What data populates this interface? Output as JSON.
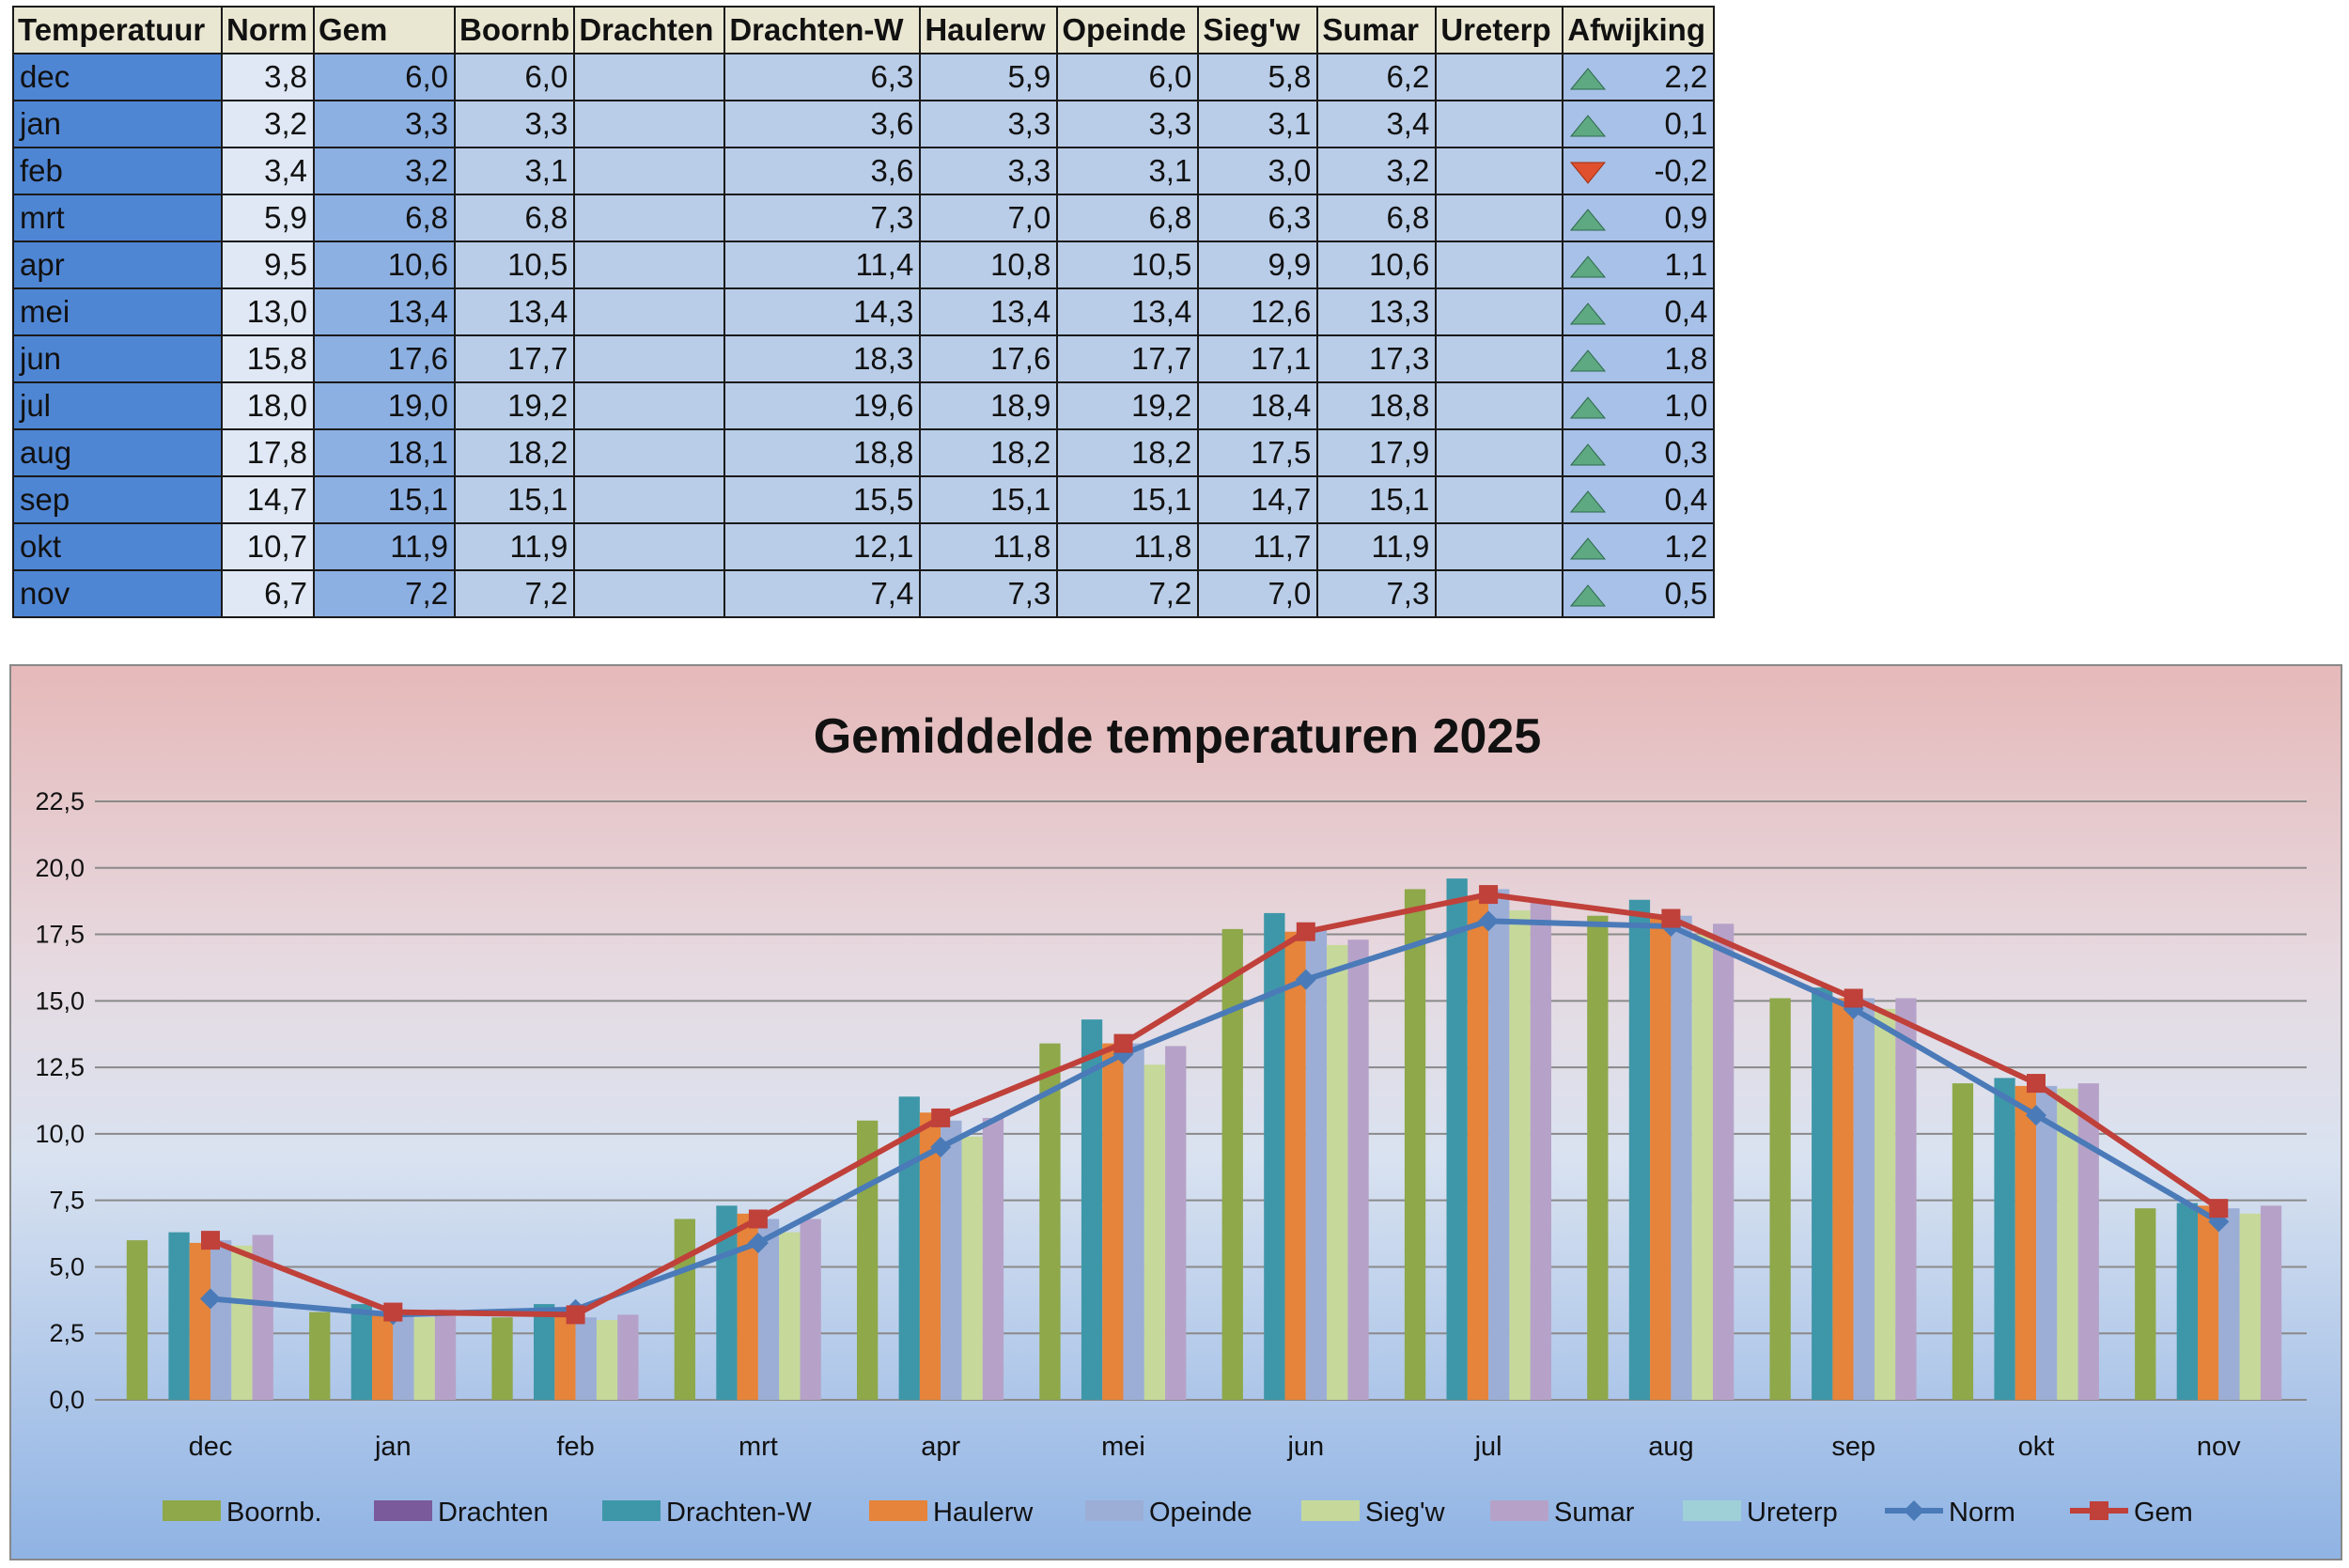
{
  "table": {
    "headers": [
      "Temperatuur",
      "Norm",
      "Gem",
      "Boornb",
      "Drachten",
      "Drachten-W",
      "Haulerw",
      "Opeinde",
      "Sieg'w",
      "Sumar",
      "Ureterp",
      "Afwijking"
    ],
    "rows": [
      {
        "month": "dec",
        "norm": "3,8",
        "gem": "6,0",
        "boornb": "6,0",
        "drachten": "",
        "drachten_w": "6,3",
        "haulerw": "5,9",
        "opeinde": "6,0",
        "siegw": "5,8",
        "sumar": "6,2",
        "ureterp": "",
        "afwijking": "2,2",
        "trend": "up"
      },
      {
        "month": "jan",
        "norm": "3,2",
        "gem": "3,3",
        "boornb": "3,3",
        "drachten": "",
        "drachten_w": "3,6",
        "haulerw": "3,3",
        "opeinde": "3,3",
        "siegw": "3,1",
        "sumar": "3,4",
        "ureterp": "",
        "afwijking": "0,1",
        "trend": "up"
      },
      {
        "month": "feb",
        "norm": "3,4",
        "gem": "3,2",
        "boornb": "3,1",
        "drachten": "",
        "drachten_w": "3,6",
        "haulerw": "3,3",
        "opeinde": "3,1",
        "siegw": "3,0",
        "sumar": "3,2",
        "ureterp": "",
        "afwijking": "-0,2",
        "trend": "down"
      },
      {
        "month": "mrt",
        "norm": "5,9",
        "gem": "6,8",
        "boornb": "6,8",
        "drachten": "",
        "drachten_w": "7,3",
        "haulerw": "7,0",
        "opeinde": "6,8",
        "siegw": "6,3",
        "sumar": "6,8",
        "ureterp": "",
        "afwijking": "0,9",
        "trend": "up"
      },
      {
        "month": "apr",
        "norm": "9,5",
        "gem": "10,6",
        "boornb": "10,5",
        "drachten": "",
        "drachten_w": "11,4",
        "haulerw": "10,8",
        "opeinde": "10,5",
        "siegw": "9,9",
        "sumar": "10,6",
        "ureterp": "",
        "afwijking": "1,1",
        "trend": "up"
      },
      {
        "month": "mei",
        "norm": "13,0",
        "gem": "13,4",
        "boornb": "13,4",
        "drachten": "",
        "drachten_w": "14,3",
        "haulerw": "13,4",
        "opeinde": "13,4",
        "siegw": "12,6",
        "sumar": "13,3",
        "ureterp": "",
        "afwijking": "0,4",
        "trend": "up"
      },
      {
        "month": "jun",
        "norm": "15,8",
        "gem": "17,6",
        "boornb": "17,7",
        "drachten": "",
        "drachten_w": "18,3",
        "haulerw": "17,6",
        "opeinde": "17,7",
        "siegw": "17,1",
        "sumar": "17,3",
        "ureterp": "",
        "afwijking": "1,8",
        "trend": "up"
      },
      {
        "month": "jul",
        "norm": "18,0",
        "gem": "19,0",
        "boornb": "19,2",
        "drachten": "",
        "drachten_w": "19,6",
        "haulerw": "18,9",
        "opeinde": "19,2",
        "siegw": "18,4",
        "sumar": "18,8",
        "ureterp": "",
        "afwijking": "1,0",
        "trend": "up"
      },
      {
        "month": "aug",
        "norm": "17,8",
        "gem": "18,1",
        "boornb": "18,2",
        "drachten": "",
        "drachten_w": "18,8",
        "haulerw": "18,2",
        "opeinde": "18,2",
        "siegw": "17,5",
        "sumar": "17,9",
        "ureterp": "",
        "afwijking": "0,3",
        "trend": "up"
      },
      {
        "month": "sep",
        "norm": "14,7",
        "gem": "15,1",
        "boornb": "15,1",
        "drachten": "",
        "drachten_w": "15,5",
        "haulerw": "15,1",
        "opeinde": "15,1",
        "siegw": "14,7",
        "sumar": "15,1",
        "ureterp": "",
        "afwijking": "0,4",
        "trend": "up"
      },
      {
        "month": "okt",
        "norm": "10,7",
        "gem": "11,9",
        "boornb": "11,9",
        "drachten": "",
        "drachten_w": "12,1",
        "haulerw": "11,8",
        "opeinde": "11,8",
        "siegw": "11,7",
        "sumar": "11,9",
        "ureterp": "",
        "afwijking": "1,2",
        "trend": "up"
      },
      {
        "month": "nov",
        "norm": "6,7",
        "gem": "7,2",
        "boornb": "7,2",
        "drachten": "",
        "drachten_w": "7,4",
        "haulerw": "7,3",
        "opeinde": "7,2",
        "siegw": "7,0",
        "sumar": "7,3",
        "ureterp": "",
        "afwijking": "0,5",
        "trend": "up"
      }
    ],
    "trend_colors": {
      "up": "#5ea882",
      "down": "#e0502e"
    }
  },
  "chart_data": {
    "type": "bar+line",
    "title": "Gemiddelde temperaturen 2025",
    "categories": [
      "dec",
      "jan",
      "feb",
      "mrt",
      "apr",
      "mei",
      "jun",
      "jul",
      "aug",
      "sep",
      "okt",
      "nov"
    ],
    "ylim": [
      0,
      22.5
    ],
    "yticks": [
      "0,0",
      "2,5",
      "5,0",
      "7,5",
      "10,0",
      "12,5",
      "15,0",
      "17,5",
      "20,0",
      "22,5"
    ],
    "grid": true,
    "legend_position": "bottom",
    "bar_series": [
      {
        "name": "Boornb.",
        "color": "#8ea84a",
        "values": [
          6.0,
          3.3,
          3.1,
          6.8,
          10.5,
          13.4,
          17.7,
          19.2,
          18.2,
          15.1,
          11.9,
          7.2
        ]
      },
      {
        "name": "Drachten",
        "color": "#7a5a9a",
        "values": [
          null,
          null,
          null,
          null,
          null,
          null,
          null,
          null,
          null,
          null,
          null,
          null
        ]
      },
      {
        "name": "Drachten-W",
        "color": "#3e97a8",
        "values": [
          6.3,
          3.6,
          3.6,
          7.3,
          11.4,
          14.3,
          18.3,
          19.6,
          18.8,
          15.5,
          12.1,
          7.4
        ]
      },
      {
        "name": "Haulerw",
        "color": "#e5843a",
        "values": [
          5.9,
          3.3,
          3.3,
          7.0,
          10.8,
          13.4,
          17.6,
          18.9,
          18.2,
          15.1,
          11.8,
          7.3
        ]
      },
      {
        "name": "Opeinde",
        "color": "#9caed6",
        "values": [
          6.0,
          3.3,
          3.1,
          6.8,
          10.5,
          13.4,
          17.7,
          19.2,
          18.2,
          15.1,
          11.8,
          7.2
        ]
      },
      {
        "name": "Sieg'w",
        "color": "#c6d99a",
        "values": [
          5.8,
          3.1,
          3.0,
          6.3,
          9.9,
          12.6,
          17.1,
          18.4,
          17.5,
          14.7,
          11.7,
          7.0
        ]
      },
      {
        "name": "Sumar",
        "color": "#b6a2c8",
        "values": [
          6.2,
          3.4,
          3.2,
          6.8,
          10.6,
          13.3,
          17.3,
          18.8,
          17.9,
          15.1,
          11.9,
          7.3
        ]
      },
      {
        "name": "Ureterp",
        "color": "#9fd0d8",
        "values": [
          null,
          null,
          null,
          null,
          null,
          null,
          null,
          null,
          null,
          null,
          null,
          null
        ]
      }
    ],
    "line_series": [
      {
        "name": "Norm",
        "color": "#4a7ab8",
        "marker": "diamond",
        "values": [
          3.8,
          3.2,
          3.4,
          5.9,
          9.5,
          13.0,
          15.8,
          18.0,
          17.8,
          14.7,
          10.7,
          6.7
        ]
      },
      {
        "name": "Gem",
        "color": "#c0403a",
        "marker": "square",
        "values": [
          6.0,
          3.3,
          3.2,
          6.8,
          10.6,
          13.4,
          17.6,
          19.0,
          18.1,
          15.1,
          11.9,
          7.2
        ]
      }
    ]
  }
}
